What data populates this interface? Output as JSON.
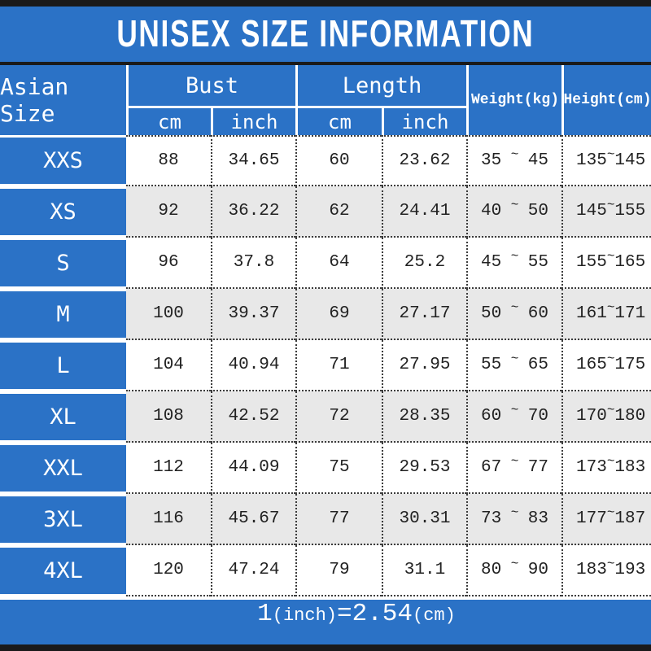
{
  "title": "UNISEX SIZE INFORMATION",
  "colors": {
    "blue": "#2b72c6",
    "altrow": "#e8e8e8",
    "bar": "#1a1a1a",
    "dot": "#3c3c3c",
    "text": "#222222"
  },
  "header": {
    "asian_size": "Asian Size",
    "bust": "Bust",
    "length": "Length",
    "weight": "Weight(kg)",
    "height": "Height(cm)",
    "unit_cm": "cm",
    "unit_inch": "inch"
  },
  "sym": {
    "tilde": "~"
  },
  "footer": {
    "p1": "1",
    "p2": "(inch)",
    "p3": "=2.54",
    "p4": "(cm)"
  },
  "chart_data": {
    "type": "table",
    "title": "UNISEX SIZE INFORMATION",
    "columns": [
      "Asian Size",
      "Bust cm",
      "Bust inch",
      "Length cm",
      "Length inch",
      "Weight(kg)",
      "Height(cm)"
    ],
    "rows": [
      {
        "size": "XXS",
        "bust_cm": "88",
        "bust_in": "34.65",
        "len_cm": "60",
        "len_in": "23.62",
        "w_lo": "35",
        "w_hi": "45",
        "h_lo": "135",
        "h_hi": "145"
      },
      {
        "size": "XS",
        "bust_cm": "92",
        "bust_in": "36.22",
        "len_cm": "62",
        "len_in": "24.41",
        "w_lo": "40",
        "w_hi": "50",
        "h_lo": "145",
        "h_hi": "155"
      },
      {
        "size": "S",
        "bust_cm": "96",
        "bust_in": "37.8",
        "len_cm": "64",
        "len_in": "25.2",
        "w_lo": "45",
        "w_hi": "55",
        "h_lo": "155",
        "h_hi": "165"
      },
      {
        "size": "M",
        "bust_cm": "100",
        "bust_in": "39.37",
        "len_cm": "69",
        "len_in": "27.17",
        "w_lo": "50",
        "w_hi": "60",
        "h_lo": "161",
        "h_hi": "171"
      },
      {
        "size": "L",
        "bust_cm": "104",
        "bust_in": "40.94",
        "len_cm": "71",
        "len_in": "27.95",
        "w_lo": "55",
        "w_hi": "65",
        "h_lo": "165",
        "h_hi": "175"
      },
      {
        "size": "XL",
        "bust_cm": "108",
        "bust_in": "42.52",
        "len_cm": "72",
        "len_in": "28.35",
        "w_lo": "60",
        "w_hi": "70",
        "h_lo": "170",
        "h_hi": "180"
      },
      {
        "size": "XXL",
        "bust_cm": "112",
        "bust_in": "44.09",
        "len_cm": "75",
        "len_in": "29.53",
        "w_lo": "67",
        "w_hi": "77",
        "h_lo": "173",
        "h_hi": "183"
      },
      {
        "size": "3XL",
        "bust_cm": "116",
        "bust_in": "45.67",
        "len_cm": "77",
        "len_in": "30.31",
        "w_lo": "73",
        "w_hi": "83",
        "h_lo": "177",
        "h_hi": "187"
      },
      {
        "size": "4XL",
        "bust_cm": "120",
        "bust_in": "47.24",
        "len_cm": "79",
        "len_in": "31.1",
        "w_lo": "80",
        "w_hi": "90",
        "h_lo": "183",
        "h_hi": "193"
      }
    ],
    "note": "1(inch)=2.54(cm)"
  }
}
